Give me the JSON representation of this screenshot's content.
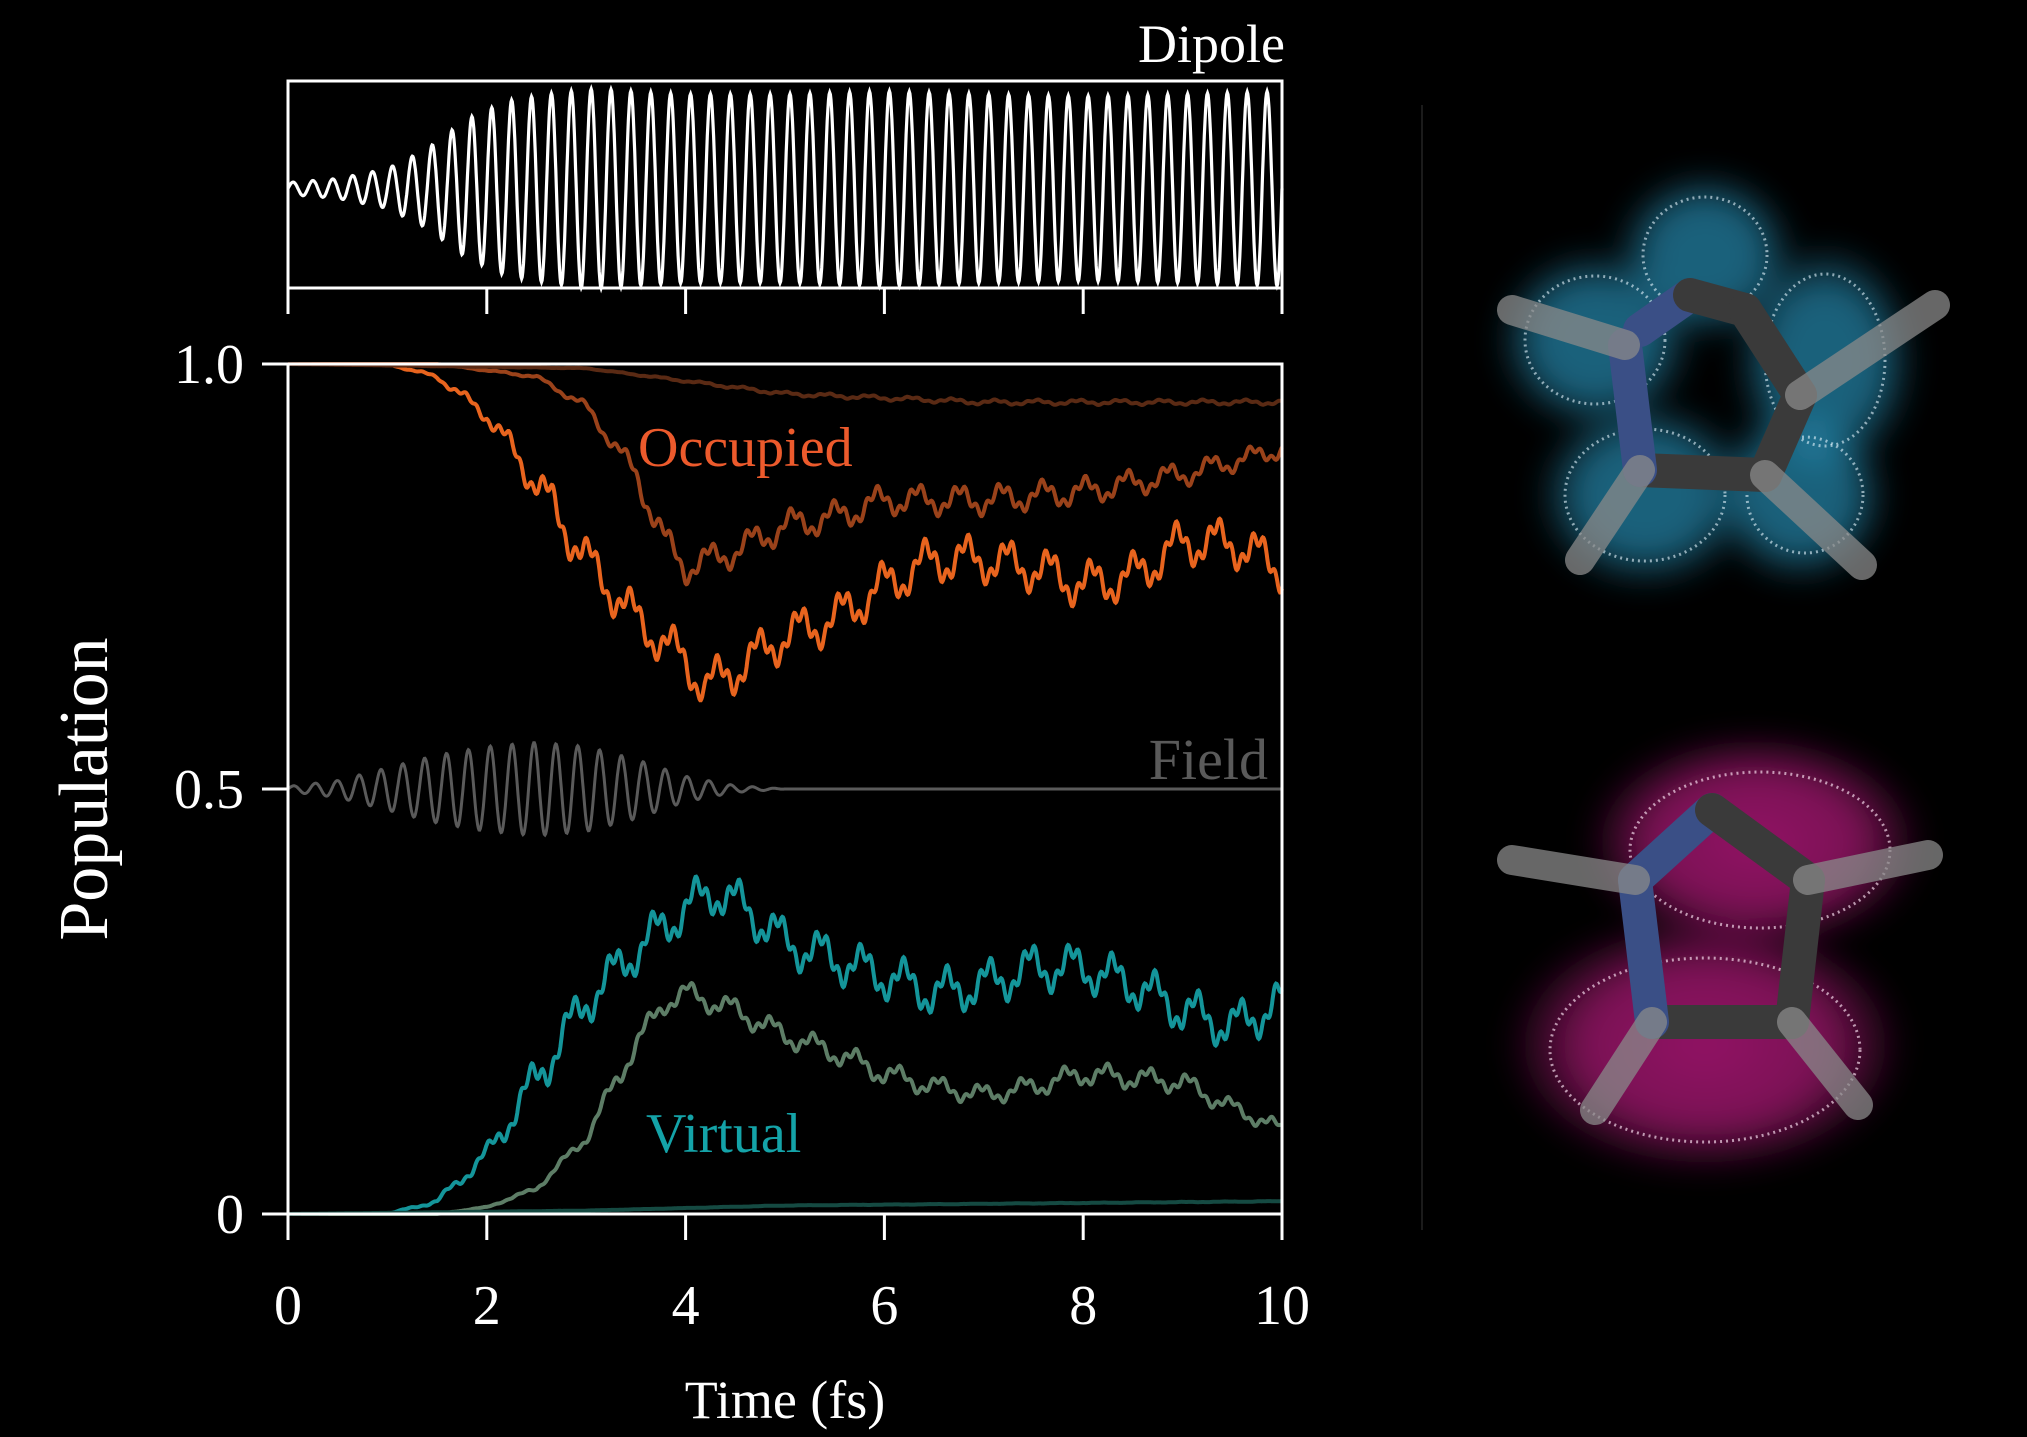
{
  "colors": {
    "background": "#000000",
    "axis": "#ffffff",
    "dipole": "#ffffff",
    "field": "#5a5a5a",
    "occupied_label": "#ec5a2c",
    "virtual_label": "#14a3a8",
    "occupied_1": "#e8641e",
    "occupied_2": "#9a421a",
    "occupied_3": "#5a2a14",
    "virtual_1": "#14959a",
    "virtual_2": "#5d7d66",
    "virtual_3": "#154a42",
    "orbital_top_glow": "#2fb0e0",
    "orbital_bottom_glow": "#e0209a",
    "molecule_carbon": "#3a3a3a",
    "molecule_nitrogen": "#3a4f86",
    "molecule_hydrogen": "#8a8a8a"
  },
  "chart_data": [
    {
      "type": "line",
      "title": "Dipole",
      "x_range": [
        0,
        10
      ],
      "envelope": {
        "t": [
          0,
          0.5,
          1.0,
          1.4,
          1.8,
          2.2,
          2.6,
          3.0,
          3.2,
          3.6,
          4.0,
          5.0,
          6.0,
          7.0,
          8.0,
          9.0,
          10.0
        ],
        "amplitude": [
          0.06,
          0.1,
          0.2,
          0.4,
          0.7,
          0.88,
          0.95,
          1.0,
          1.0,
          0.97,
          0.95,
          0.95,
          0.98,
          0.95,
          0.93,
          0.95,
          0.98
        ]
      },
      "period_fs": 0.2
    },
    {
      "type": "line",
      "xlabel": "Time (fs)",
      "ylabel": "Population",
      "xlim": [
        0,
        10
      ],
      "ylim": [
        0,
        1
      ],
      "x_ticks": [
        "0",
        "2",
        "4",
        "6",
        "8",
        "10"
      ],
      "y_ticks": [
        "0",
        "0.5",
        "1.0"
      ],
      "annotations": {
        "occupied": "Occupied",
        "virtual": "Virtual",
        "field": "Field"
      },
      "field": {
        "baseline": 0.5,
        "period_fs": 0.22,
        "t": [
          0,
          0.5,
          1.0,
          1.5,
          2.0,
          2.5,
          3.0,
          3.5,
          4.0,
          4.5,
          5.0,
          10.0
        ],
        "amplitude": [
          0.003,
          0.01,
          0.025,
          0.04,
          0.05,
          0.055,
          0.05,
          0.035,
          0.015,
          0.004,
          0.0,
          0.0
        ]
      },
      "series": [
        {
          "group": "occupied",
          "t": [
            0,
            1.0,
            1.5,
            2.0,
            2.5,
            3.0,
            3.5,
            4.0,
            4.2,
            4.5,
            5.0,
            5.5,
            6.0,
            6.5,
            7.0,
            7.5,
            8.0,
            8.5,
            9.0,
            9.5,
            10.0
          ],
          "y": [
            1.0,
            1.0,
            0.985,
            0.94,
            0.86,
            0.77,
            0.7,
            0.65,
            0.62,
            0.64,
            0.68,
            0.7,
            0.74,
            0.77,
            0.77,
            0.76,
            0.74,
            0.75,
            0.79,
            0.79,
            0.76
          ],
          "ripple": 0.03
        },
        {
          "group": "occupied",
          "t": [
            0,
            1.5,
            2.5,
            3.0,
            3.5,
            3.8,
            4.0,
            4.5,
            5.0,
            5.5,
            6.0,
            7.0,
            8.0,
            9.0,
            10.0
          ],
          "y": [
            1.0,
            1.0,
            0.985,
            0.95,
            0.87,
            0.79,
            0.76,
            0.78,
            0.81,
            0.82,
            0.84,
            0.84,
            0.85,
            0.87,
            0.9
          ],
          "ripple": 0.02
        },
        {
          "group": "occupied",
          "t": [
            0,
            3.0,
            4.0,
            5.0,
            6.0,
            7.0,
            8.0,
            9.0,
            10.0
          ],
          "y": [
            1.0,
            0.995,
            0.98,
            0.965,
            0.96,
            0.955,
            0.955,
            0.955,
            0.955
          ],
          "ripple": 0.012
        },
        {
          "group": "virtual",
          "t": [
            0,
            1.0,
            1.5,
            2.0,
            2.5,
            3.0,
            3.5,
            4.0,
            4.3,
            4.6,
            5.0,
            5.5,
            6.0,
            6.5,
            7.0,
            7.5,
            8.0,
            8.5,
            9.0,
            9.5,
            10.0
          ],
          "y": [
            0.0,
            0.0,
            0.015,
            0.07,
            0.16,
            0.25,
            0.31,
            0.36,
            0.38,
            0.36,
            0.32,
            0.3,
            0.28,
            0.26,
            0.27,
            0.29,
            0.29,
            0.27,
            0.24,
            0.22,
            0.25
          ],
          "ripple": 0.03
        },
        {
          "group": "virtual",
          "t": [
            0,
            1.5,
            2.0,
            2.5,
            3.0,
            3.5,
            3.8,
            4.0,
            4.5,
            5.0,
            5.5,
            6.0,
            6.5,
            7.0,
            7.5,
            8.0,
            8.5,
            9.0,
            9.5,
            10.0
          ],
          "y": [
            0.0,
            0.0,
            0.008,
            0.03,
            0.09,
            0.2,
            0.25,
            0.26,
            0.24,
            0.21,
            0.19,
            0.165,
            0.15,
            0.14,
            0.15,
            0.165,
            0.16,
            0.155,
            0.125,
            0.1
          ],
          "ripple": 0.015
        },
        {
          "group": "virtual",
          "t": [
            0,
            3.0,
            5.0,
            10.0
          ],
          "y": [
            0.0,
            0.004,
            0.01,
            0.015
          ],
          "ripple": 0.004
        }
      ]
    }
  ]
}
